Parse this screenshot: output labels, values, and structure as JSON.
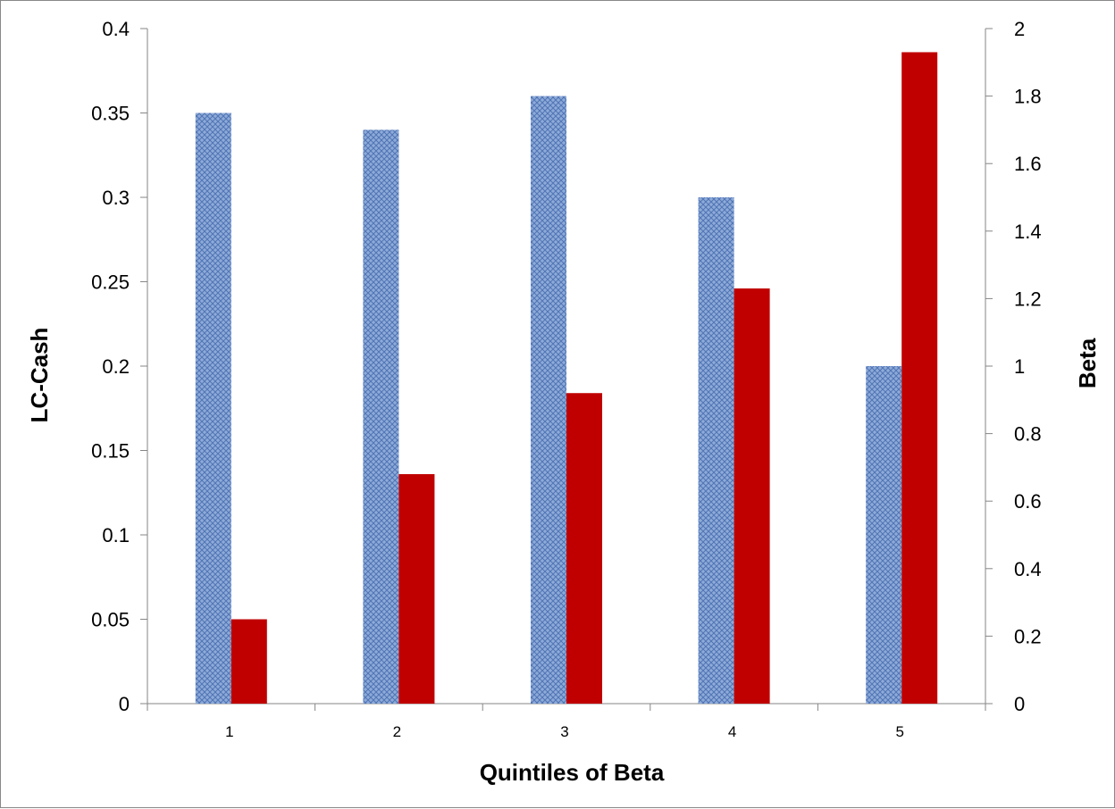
{
  "chart_data": {
    "type": "bar",
    "title": "",
    "xlabel": "Quintiles of Beta",
    "ylabel": "LC-Cash",
    "y2label": "Beta",
    "categories": [
      "1",
      "2",
      "3",
      "4",
      "5"
    ],
    "ylim": [
      0,
      0.4
    ],
    "y2lim": [
      0,
      2
    ],
    "yticks": [
      "0",
      "0.05",
      "0.1",
      "0.15",
      "0.2",
      "0.25",
      "0.3",
      "0.35",
      "0.4"
    ],
    "y2ticks": [
      "0",
      "0.2",
      "0.4",
      "0.6",
      "0.8",
      "1",
      "1.2",
      "1.4",
      "1.6",
      "1.8",
      "2"
    ],
    "grid": false,
    "legend": "none",
    "series": [
      {
        "axis": "left",
        "color": "#8EAAD8",
        "pattern": "crosshatch",
        "values": [
          0.35,
          0.34,
          0.36,
          0.3,
          0.2
        ]
      },
      {
        "axis": "right",
        "color": "#C00000",
        "pattern": "solid",
        "values": [
          0.25,
          0.68,
          0.92,
          1.23,
          1.93
        ]
      }
    ]
  }
}
